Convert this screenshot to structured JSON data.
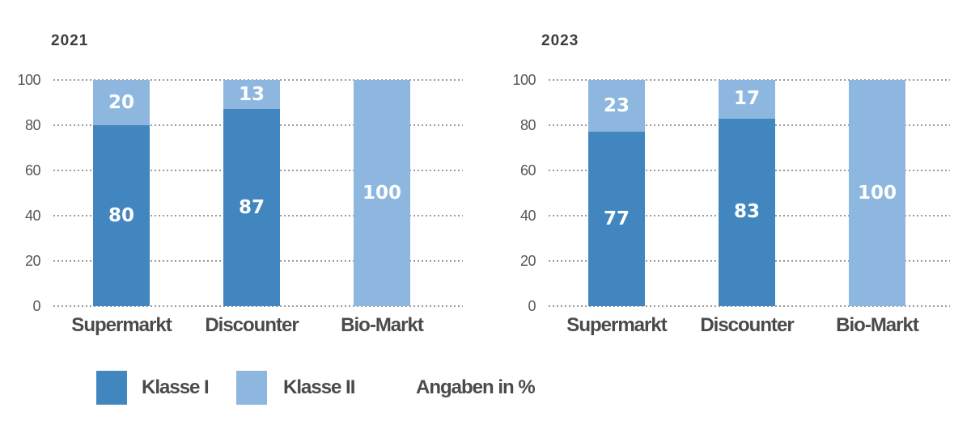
{
  "colors": {
    "klasse_i": "#4286BF",
    "klasse_ii": "#8DB7DE",
    "grid": "#9B9B9B",
    "tick_text": "#54575B",
    "title_text": "#3D3D3D",
    "label_text": "#4A4A4A",
    "value_text": "#FFFFFF"
  },
  "legend": {
    "items": [
      {
        "label": "Klasse I",
        "color_key": "klasse_i"
      },
      {
        "label": "Klasse II",
        "color_key": "klasse_ii"
      }
    ],
    "note": "Angaben in %"
  },
  "chart_data": [
    {
      "type": "bar",
      "stacked": true,
      "title": "2021",
      "categories": [
        "Supermarkt",
        "Discounter",
        "Bio-Markt"
      ],
      "series": [
        {
          "name": "Klasse I",
          "values": [
            80,
            87,
            0
          ]
        },
        {
          "name": "Klasse II",
          "values": [
            20,
            13,
            100
          ]
        }
      ],
      "xlabel": "",
      "ylabel": "",
      "unit": "%",
      "ylim": [
        0,
        100
      ],
      "y_ticks": [
        0,
        20,
        40,
        60,
        80,
        100
      ],
      "grid": "horizontal-dotted",
      "legend_position": "bottom"
    },
    {
      "type": "bar",
      "stacked": true,
      "title": "2023",
      "categories": [
        "Supermarkt",
        "Discounter",
        "Bio-Markt"
      ],
      "series": [
        {
          "name": "Klasse I",
          "values": [
            77,
            83,
            0
          ]
        },
        {
          "name": "Klasse II",
          "values": [
            23,
            17,
            100
          ]
        }
      ],
      "xlabel": "",
      "ylabel": "",
      "unit": "%",
      "ylim": [
        0,
        100
      ],
      "y_ticks": [
        0,
        20,
        40,
        60,
        80,
        100
      ],
      "grid": "horizontal-dotted",
      "legend_position": "bottom"
    }
  ]
}
